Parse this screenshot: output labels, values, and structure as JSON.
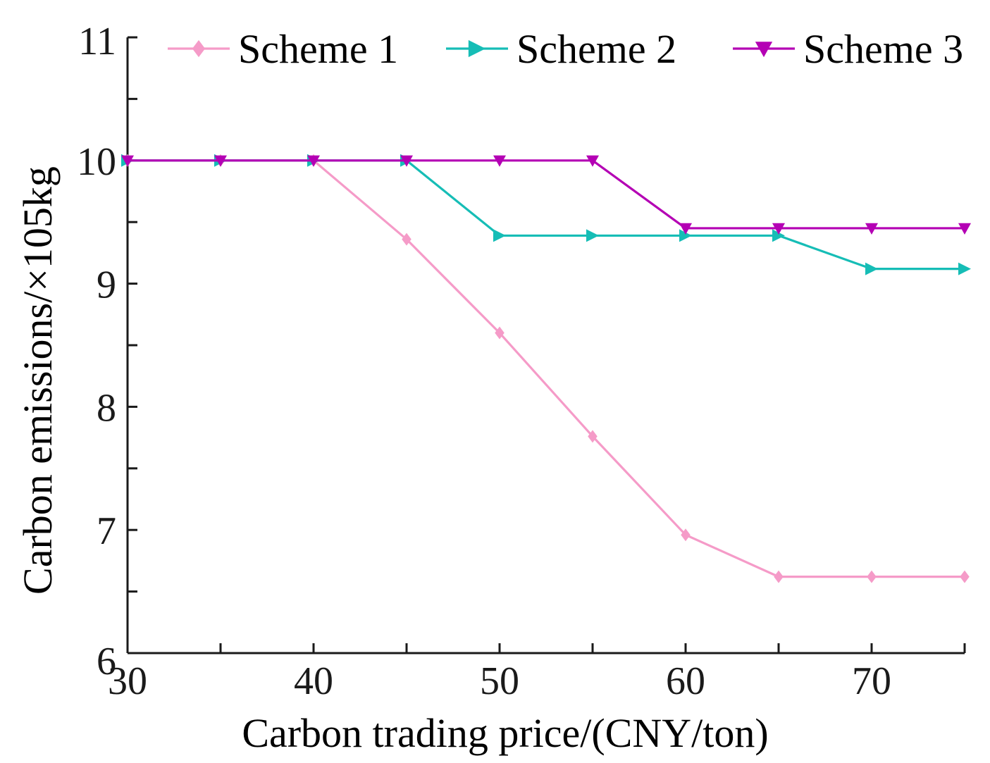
{
  "chart_data": {
    "type": "line",
    "title": "",
    "xlabel": "Carbon trading price/(CNY/ton)",
    "ylabel": "Carbon emissions/×105kg",
    "x": [
      30,
      35,
      40,
      45,
      50,
      55,
      60,
      65,
      70,
      75
    ],
    "xlim": [
      30,
      75
    ],
    "ylim": [
      6,
      11
    ],
    "xticks": [
      30,
      40,
      50,
      60,
      70
    ],
    "yticks": [
      6,
      7,
      8,
      9,
      10,
      11
    ],
    "xtick_labels": [
      "30",
      "40",
      "50",
      "60",
      "70"
    ],
    "ytick_labels": [
      "6",
      "7",
      "8",
      "9",
      "10",
      "11"
    ],
    "grid": false,
    "legend_position": "top",
    "series": [
      {
        "name": "Scheme 1",
        "color": "#f59bc8",
        "marker": "diamond",
        "values": [
          10.0,
          10.0,
          10.0,
          9.36,
          8.6,
          7.76,
          6.96,
          6.62,
          6.62,
          6.62
        ]
      },
      {
        "name": "Scheme 2",
        "color": "#16bdb6",
        "marker": "triangle-right",
        "values": [
          10.0,
          10.0,
          10.0,
          10.0,
          9.39,
          9.39,
          9.39,
          9.39,
          9.12,
          9.12
        ]
      },
      {
        "name": "Scheme 3",
        "color": "#b400b4",
        "marker": "triangle-down",
        "values": [
          10.0,
          10.0,
          10.0,
          10.0,
          10.0,
          10.0,
          9.45,
          9.45,
          9.45,
          9.45
        ]
      }
    ]
  }
}
